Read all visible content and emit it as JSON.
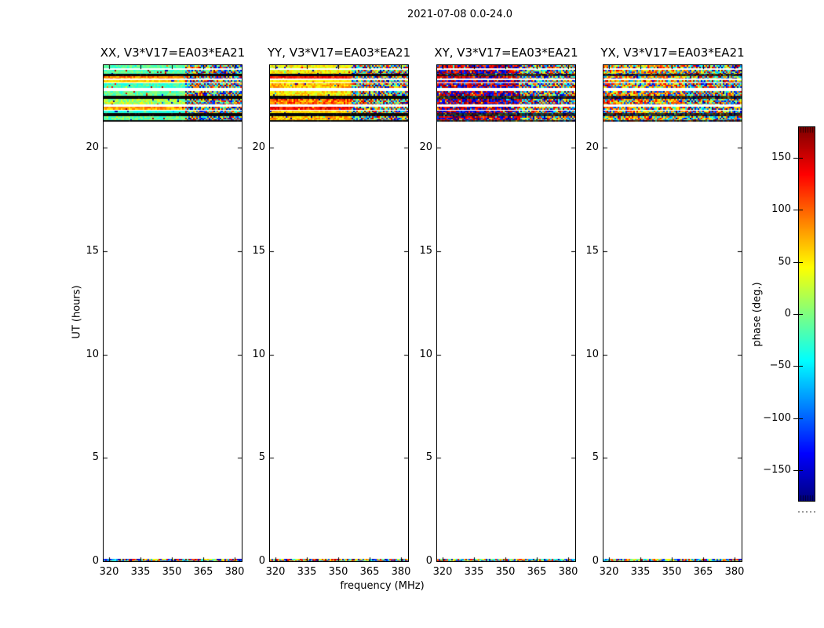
{
  "figure": {
    "title": "2021-07-08 0.0-24.0"
  },
  "chart_data": {
    "type": "heatmap",
    "title": "2021-07-08 0.0-24.0",
    "xlabel": "frequency (MHz)",
    "ylabel": "UT (hours)",
    "x_ticks": [
      320,
      335,
      350,
      365,
      380
    ],
    "x_range": [
      317.5,
      383.5
    ],
    "y_ticks": [
      0,
      5,
      10,
      15,
      20
    ],
    "y_range": [
      0,
      24
    ],
    "grid": false,
    "colorbar": {
      "label": "phase (deg.)",
      "ticks": [
        150,
        100,
        50,
        0,
        -50,
        -100,
        -150
      ],
      "tick_labels": [
        "150",
        "100",
        "50",
        "0",
        "−50",
        "−100",
        "−150"
      ],
      "range": [
        -180,
        180
      ],
      "colormap": "jet",
      "position": "right"
    },
    "panels": [
      {
        "title": "XX, V3*V17=EA03*EA21",
        "pol": "XX"
      },
      {
        "title": "YY, V3*V17=EA03*EA21",
        "pol": "YY"
      },
      {
        "title": "XY, V3*V17=EA03*EA21",
        "pol": "XY"
      },
      {
        "title": "YX, V3*V17=EA03*EA21",
        "pol": "YX"
      }
    ],
    "data_time_span_hours": [
      21.3,
      24.0
    ],
    "scramble_start_mhz": 356,
    "rows": [
      {
        "start": 23.83,
        "end": 24.0,
        "kind": "data",
        "xx": [
          -12,
          20
        ],
        "yy": [
          42,
          30
        ],
        "xy_bias": 0.55
      },
      {
        "start": 23.58,
        "end": 23.77,
        "kind": "data",
        "xx": [
          -15,
          18
        ],
        "yy": [
          48,
          30
        ],
        "xy_bias": 0.5
      },
      {
        "start": 23.45,
        "end": 23.58,
        "kind": "black"
      },
      {
        "start": 23.34,
        "end": 23.45,
        "kind": "data",
        "xx": [
          85,
          30
        ],
        "yy": [
          135,
          25
        ],
        "xy_bias": 0.7
      },
      {
        "start": 23.17,
        "end": 23.28,
        "kind": "data",
        "xx": [
          58,
          18
        ],
        "yy": [
          55,
          18
        ],
        "xy_bias": 0.5
      },
      {
        "start": 22.88,
        "end": 23.13,
        "kind": "data",
        "xx": [
          -22,
          22
        ],
        "yy": [
          68,
          35
        ],
        "xy_bias": 0.6
      },
      {
        "start": 22.52,
        "end": 22.73,
        "kind": "data",
        "xx": [
          -12,
          25
        ],
        "yy": [
          52,
          30
        ],
        "xy_bias": 0.45
      },
      {
        "start": 22.35,
        "end": 22.52,
        "kind": "black"
      },
      {
        "start": 22.12,
        "end": 22.35,
        "kind": "data",
        "xx": [
          15,
          40
        ],
        "yy": [
          95,
          45
        ],
        "xy_bias": 0.55
      },
      {
        "start": 21.84,
        "end": 21.99,
        "kind": "data",
        "xx": [
          80,
          25
        ],
        "yy": [
          135,
          25
        ],
        "xy_bias": 0.6
      },
      {
        "start": 21.67,
        "end": 21.8,
        "kind": "data",
        "xx": [
          -28,
          15
        ],
        "yy": [
          55,
          20
        ],
        "xy_bias": 0.4
      },
      {
        "start": 21.55,
        "end": 21.67,
        "kind": "black"
      },
      {
        "start": 21.33,
        "end": 21.55,
        "kind": "data",
        "xx": [
          -5,
          30
        ],
        "yy": [
          60,
          35
        ],
        "xy_bias": 0.55
      },
      {
        "start": 21.28,
        "end": 21.33,
        "kind": "black"
      }
    ],
    "bottom_stripe": {
      "start": 0.0,
      "end": 0.1
    }
  }
}
